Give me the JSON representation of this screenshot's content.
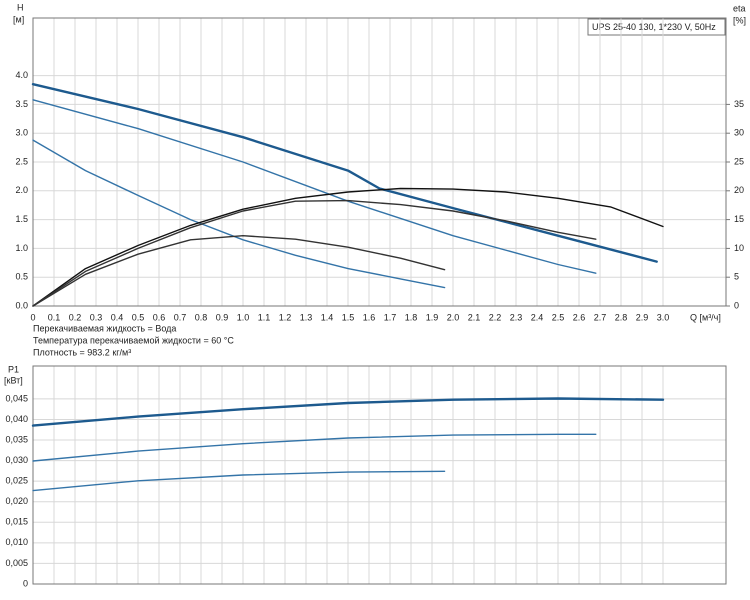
{
  "chart_data": [
    {
      "type": "line",
      "title": "UPS 25-40 130, 1*230 V, 50Hz",
      "ylabel": "H",
      "yunit": "[м]",
      "y2label": "eta",
      "y2unit": "[%]",
      "xlabel": "Q [м³/ч]",
      "notes": [
        "Перекачиваемая жидкость = Вода",
        "Температура перекачиваемой жидкости = 60 °C",
        "Плотность = 983.2 кг/м³"
      ],
      "grid": true,
      "xlim": [
        0,
        3.3
      ],
      "xticks": [
        0,
        0.1,
        0.2,
        0.3,
        0.4,
        0.5,
        0.6,
        0.7,
        0.8,
        0.9,
        {
          "value": 1,
          "label": "1.0"
        },
        1.1,
        1.2,
        1.3,
        1.4,
        1.5,
        1.6,
        1.7,
        1.8,
        1.9,
        {
          "value": 2,
          "label": "2.0"
        },
        2.1,
        2.2,
        2.3,
        2.4,
        2.5,
        2.6,
        2.7,
        2.8,
        2.9,
        {
          "value": 3,
          "label": "3.0"
        }
      ],
      "ylim": [
        0,
        5
      ],
      "yticks": [
        {
          "value": 0,
          "label": "0.0"
        },
        0.5,
        {
          "value": 1,
          "label": "1.0"
        },
        1.5,
        {
          "value": 2,
          "label": "2.0"
        },
        2.5,
        {
          "value": 3,
          "label": "3.0"
        },
        3.5,
        {
          "value": 4,
          "label": "4.0"
        }
      ],
      "y2lim": [
        0,
        50
      ],
      "y2ticks": [
        0,
        5,
        10,
        15,
        20,
        25,
        30,
        35
      ],
      "series": [
        {
          "color": "#1d5a8e",
          "x": [
            0,
            0.5,
            1.0,
            1.5,
            1.65,
            2.0,
            2.5,
            2.97
          ],
          "values": [
            3.85,
            3.42,
            2.93,
            2.35,
            2.04,
            1.7,
            1.22,
            0.77
          ]
        },
        {
          "color": "#3474a8",
          "x": [
            0,
            0.5,
            1.0,
            1.5,
            2.0,
            2.5,
            2.68
          ],
          "values": [
            3.58,
            3.08,
            2.5,
            1.82,
            1.22,
            0.72,
            0.57
          ]
        },
        {
          "color": "#3474a8",
          "x": [
            0,
            0.25,
            0.5,
            0.75,
            1.0,
            1.25,
            1.5,
            1.75,
            1.96
          ],
          "values": [
            2.88,
            2.35,
            1.92,
            1.5,
            1.15,
            0.88,
            0.65,
            0.47,
            0.32
          ]
        },
        {
          "color": "#111111",
          "axis": "y2",
          "x": [
            0,
            0.25,
            0.5,
            0.75,
            1.0,
            1.25,
            1.5,
            1.75,
            2.0,
            2.25,
            2.5,
            2.75,
            3.0
          ],
          "values": [
            0,
            6.5,
            10.5,
            14,
            16.8,
            18.7,
            19.8,
            20.4,
            20.3,
            19.8,
            18.7,
            17.2,
            13.8
          ]
        },
        {
          "color": "#333333",
          "axis": "y2",
          "x": [
            0,
            0.25,
            0.5,
            0.75,
            1.0,
            1.25,
            1.5,
            1.75,
            2.0,
            2.25,
            2.5,
            2.68
          ],
          "values": [
            0,
            6,
            10,
            13.6,
            16.5,
            18.2,
            18.3,
            17.6,
            16.5,
            14.8,
            12.8,
            11.6
          ]
        },
        {
          "color": "#333333",
          "axis": "y2",
          "x": [
            0,
            0.25,
            0.5,
            0.75,
            1.0,
            1.25,
            1.5,
            1.75,
            1.96
          ],
          "values": [
            0,
            5.5,
            9,
            11.5,
            12.2,
            11.6,
            10.2,
            8.3,
            6.3
          ]
        }
      ]
    },
    {
      "type": "line",
      "ylabel": "P1",
      "yunit": "[кВт]",
      "grid": true,
      "xlim": [
        0,
        3.3
      ],
      "ylim": [
        0,
        0.053
      ],
      "yticks": [
        0,
        {
          "value": 0.005,
          "label": "0,005"
        },
        {
          "value": 0.01,
          "label": "0,010"
        },
        {
          "value": 0.015,
          "label": "0,015"
        },
        {
          "value": 0.02,
          "label": "0,020"
        },
        {
          "value": 0.025,
          "label": "0,025"
        },
        {
          "value": 0.03,
          "label": "0,030"
        },
        {
          "value": 0.035,
          "label": "0,035"
        },
        {
          "value": 0.04,
          "label": "0,040"
        },
        {
          "value": 0.045,
          "label": "0,045"
        }
      ],
      "series": [
        {
          "color": "#1d5a8e",
          "x": [
            0,
            0.5,
            1.0,
            1.5,
            2.0,
            2.5,
            3.0
          ],
          "values": [
            0.0385,
            0.0407,
            0.0425,
            0.044,
            0.0448,
            0.0451,
            0.0448
          ]
        },
        {
          "color": "#3474a8",
          "x": [
            0,
            0.5,
            1.0,
            1.5,
            2.0,
            2.5,
            2.68
          ],
          "values": [
            0.0299,
            0.0323,
            0.0341,
            0.0355,
            0.0362,
            0.0364,
            0.0364
          ]
        },
        {
          "color": "#3474a8",
          "x": [
            0,
            0.5,
            1.0,
            1.5,
            1.96
          ],
          "values": [
            0.0227,
            0.0251,
            0.0265,
            0.0272,
            0.0274
          ]
        }
      ]
    }
  ]
}
